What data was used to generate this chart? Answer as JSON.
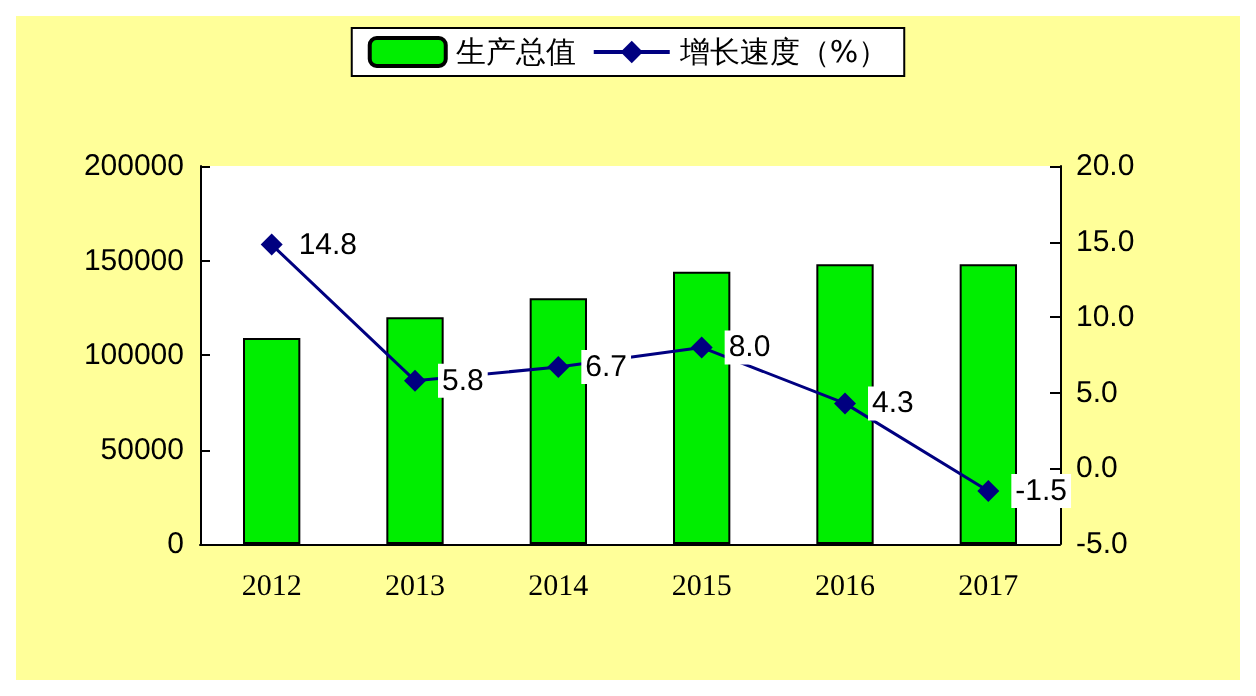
{
  "chart_data": {
    "type": "bar",
    "categories": [
      "2012",
      "2013",
      "2014",
      "2015",
      "2016",
      "2017"
    ],
    "series": [
      {
        "name": "生产总值",
        "color": "#00ee00",
        "values": [
          109000,
          120000,
          130000,
          144000,
          148000,
          148000
        ]
      },
      {
        "name": "增长速度（%）",
        "type": "line",
        "axis": "y2",
        "color": "#000080",
        "values": [
          14.8,
          5.8,
          6.7,
          8.0,
          4.3,
          -1.5
        ],
        "value_labels": [
          "14.8",
          "5.8",
          "6.7",
          "8.0",
          "4.3",
          "-1.5"
        ]
      }
    ],
    "ylim": [
      0,
      200000
    ],
    "yticks": [
      0,
      50000,
      100000,
      150000,
      200000
    ],
    "y2lim": [
      -5,
      20
    ],
    "y2ticks": [
      {
        "value": -5,
        "label": "-5.0"
      },
      {
        "value": 0,
        "label": "0.0"
      },
      {
        "value": 5,
        "label": "5.0"
      },
      {
        "value": 10,
        "label": "10.0"
      },
      {
        "value": 15,
        "label": "15.0"
      },
      {
        "value": 20,
        "label": "20.0"
      }
    ],
    "marker": "diamond",
    "grid": false,
    "legend": "top"
  }
}
